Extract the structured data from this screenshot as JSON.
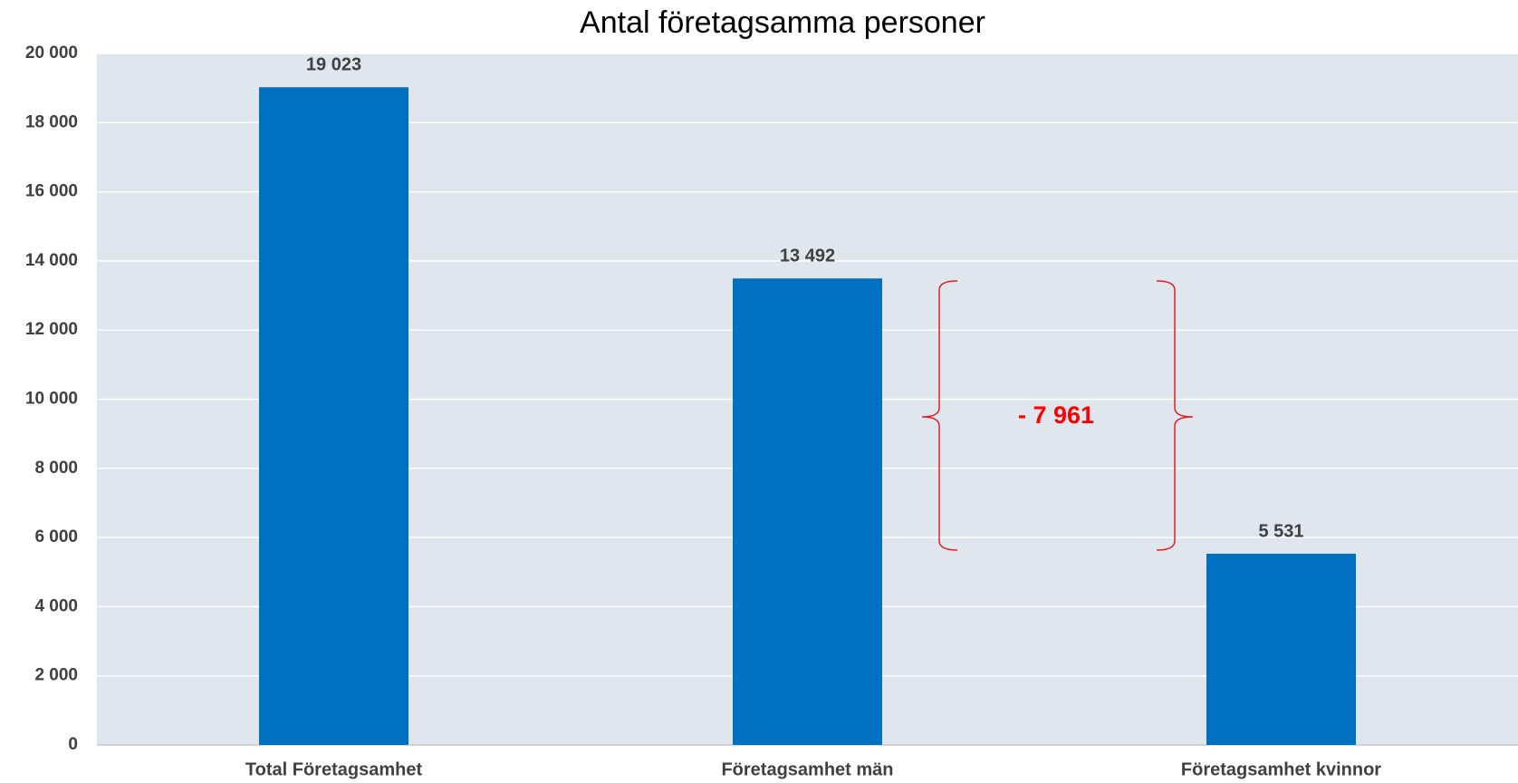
{
  "chart_data": {
    "type": "bar",
    "title": "Antal företagsamma personer",
    "categories": [
      "Total Företagsamhet",
      "Företagsamhet män",
      "Företagsamhet kvinnor"
    ],
    "values": [
      19023,
      13492,
      5531
    ],
    "value_labels": [
      "19 023",
      "13 492",
      "5 531"
    ],
    "color": "#0070c0",
    "ylim": [
      0,
      20000
    ],
    "yticks": [
      0,
      {
        "value": 2000,
        "label": "2 000"
      },
      {
        "value": 4000,
        "label": "4 000"
      },
      {
        "value": 6000,
        "label": "6 000"
      },
      {
        "value": 8000,
        "label": "8 000"
      },
      {
        "value": 10000,
        "label": "10 000"
      },
      {
        "value": 12000,
        "label": "12 000"
      },
      {
        "value": 14000,
        "label": "14 000"
      },
      {
        "value": 16000,
        "label": "16 000"
      },
      {
        "value": 18000,
        "label": "18 000"
      },
      {
        "value": 20000,
        "label": "20 000"
      }
    ],
    "grid": true,
    "annotation": "- 7 961"
  }
}
